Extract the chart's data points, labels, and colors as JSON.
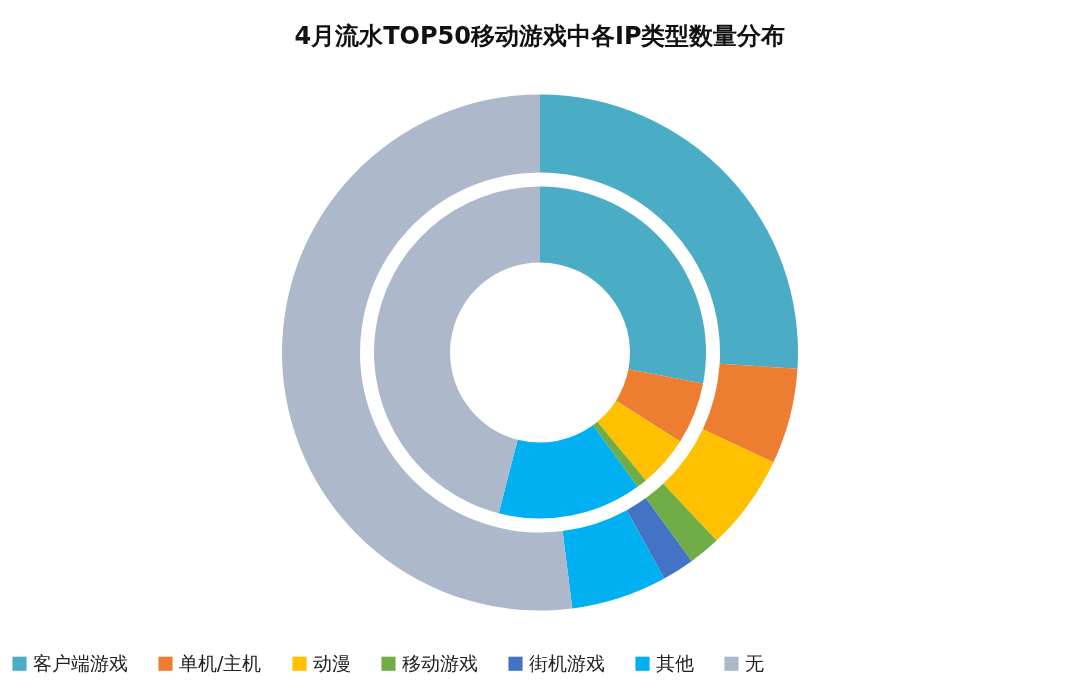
{
  "chart_data": {
    "type": "donut",
    "title": "4月流水TOP50移动游戏中各IP类型数量分布",
    "categories": [
      "客户端游戏",
      "单机/主机",
      "动漫",
      "移动游戏",
      "街机游戏",
      "其他",
      "无"
    ],
    "colors": [
      "#4bacc6",
      "#ed7d31",
      "#ffc000",
      "#70ad47",
      "#4472c4",
      "#00b0f0",
      "#adb9ca"
    ],
    "series": [
      {
        "values": [
          26,
          6,
          6,
          2,
          2,
          6,
          52
        ]
      },
      {
        "values": [
          28,
          6,
          5,
          1,
          0,
          14,
          46
        ]
      }
    ],
    "legend": "bottom"
  }
}
